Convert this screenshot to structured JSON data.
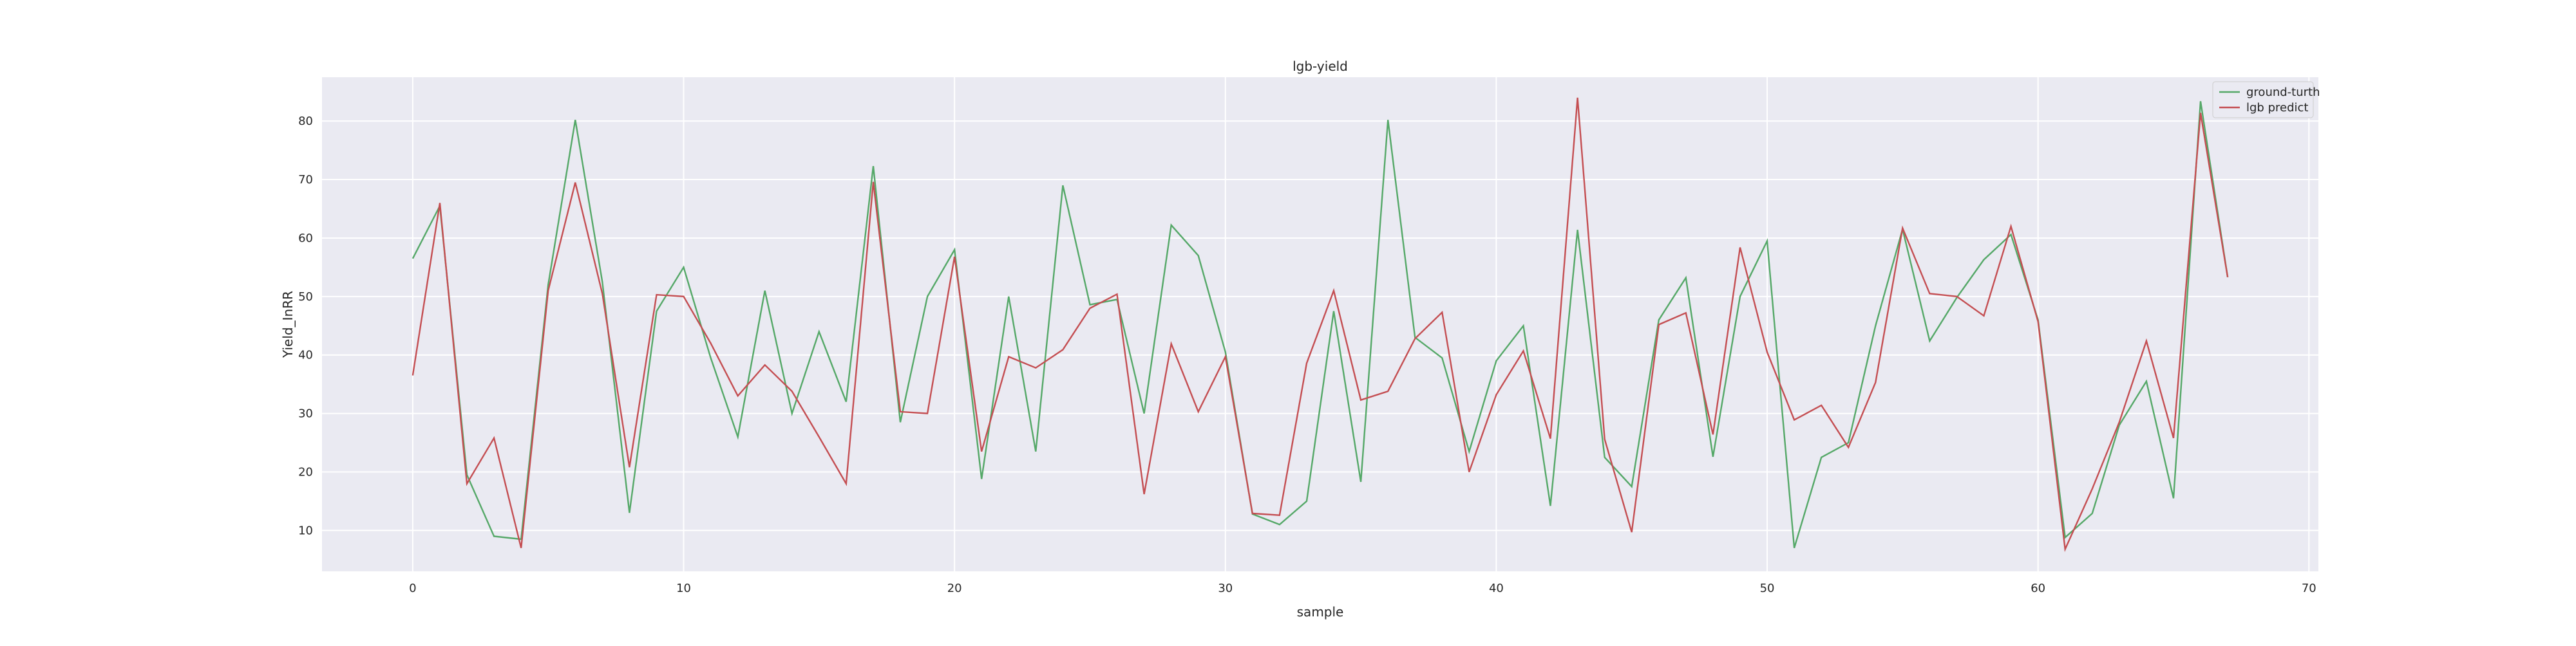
{
  "chart_data": {
    "type": "line",
    "title": "lgb-yield",
    "xlabel": "sample",
    "ylabel": "Yield_InRR",
    "xlim": [
      -3.35,
      70.35
    ],
    "ylim": [
      3,
      87.5
    ],
    "xticks": [
      0,
      10,
      20,
      30,
      40,
      50,
      60,
      70
    ],
    "yticks": [
      10,
      20,
      30,
      40,
      50,
      60,
      70,
      80
    ],
    "grid": true,
    "legend_position": "top-right",
    "background": "#eaeaf2",
    "x": [
      0,
      1,
      2,
      3,
      4,
      5,
      6,
      7,
      8,
      9,
      10,
      11,
      12,
      13,
      14,
      15,
      16,
      17,
      18,
      19,
      20,
      21,
      22,
      23,
      24,
      25,
      26,
      27,
      28,
      29,
      30,
      31,
      32,
      33,
      34,
      35,
      36,
      37,
      38,
      39,
      40,
      41,
      42,
      43,
      44,
      45,
      46,
      47,
      48,
      49,
      50,
      51,
      52,
      53,
      54,
      55,
      56,
      57,
      58,
      59,
      60,
      61,
      62,
      63,
      64,
      65,
      66,
      67
    ],
    "series": [
      {
        "name": "ground-turth",
        "color": "#55a868",
        "values": [
          56.5,
          65.5,
          19.5,
          9,
          8.5,
          52,
          80.2,
          52.5,
          13,
          47.5,
          55,
          39.5,
          26,
          51,
          30,
          44,
          32,
          72.3,
          28.5,
          50,
          58,
          18.8,
          50,
          23.5,
          69,
          48.6,
          49.5,
          30,
          62.2,
          57,
          40.5,
          12.8,
          11,
          15,
          47.5,
          18.3,
          80.2,
          43,
          39.5,
          23.5,
          39,
          45,
          14.2,
          61.4,
          22.5,
          17.5,
          46,
          53.2,
          22.6,
          50,
          59.5,
          7,
          22.5,
          25,
          45,
          61.5,
          42.4,
          49.8,
          56.3,
          60.6,
          46,
          8.8,
          12.9,
          28,
          35.5,
          15.5,
          83.4,
          53.3
        ]
      },
      {
        "name": "lgb predict",
        "color": "#c44e52",
        "values": [
          36.5,
          66,
          18,
          25.8,
          7,
          51,
          69.5,
          50.5,
          20.8,
          50.3,
          50,
          42,
          33,
          38.3,
          33.8,
          26,
          18,
          69.6,
          30.3,
          30,
          56.8,
          23.5,
          39.7,
          37.8,
          40.9,
          48,
          50.4,
          16.2,
          41.9,
          30.3,
          39.7,
          12.9,
          12.6,
          38.6,
          51,
          32.3,
          33.8,
          42.8,
          47.3,
          20,
          33.2,
          40.7,
          25.7,
          84,
          25.6,
          9.7,
          45.2,
          47.2,
          26.4,
          58.4,
          40.5,
          28.9,
          31.4,
          24.2,
          35.3,
          61.7,
          50.5,
          50,
          46.7,
          62,
          45.7,
          6.8,
          17.1,
          28.5,
          42.4,
          25.8,
          81.4,
          53.3
        ]
      }
    ]
  }
}
